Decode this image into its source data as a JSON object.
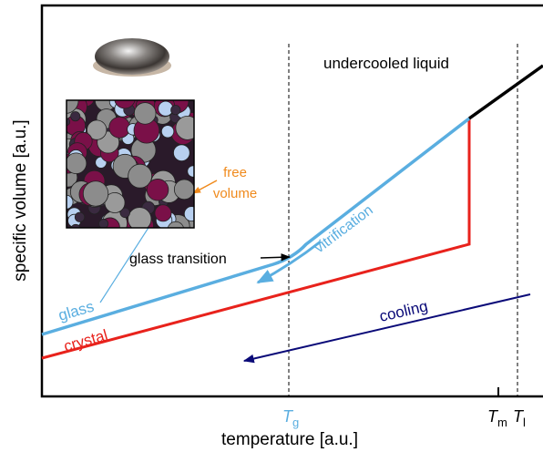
{
  "labels": {
    "liquid": "undercooled liquid",
    "free_volume": [
      "free",
      "volume"
    ],
    "glass_transition": "glass transition",
    "vitrification": "vitrification",
    "glass": "glass",
    "crystal": "crystal",
    "cooling": "cooling"
  },
  "axes": {
    "y_label": "specific volume [a.u.]",
    "x_label": "temperature [a.u.]",
    "x_ticks": [
      {
        "symbol": "T",
        "subscript": "g"
      },
      {
        "symbol": "T",
        "subscript": "m"
      },
      {
        "symbol": "T",
        "subscript": "l"
      }
    ]
  }
}
